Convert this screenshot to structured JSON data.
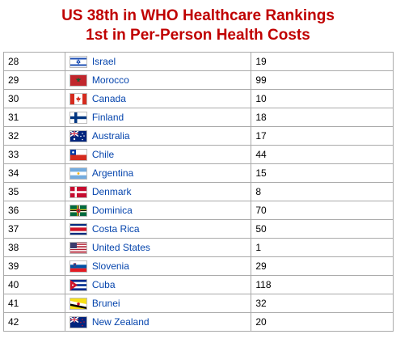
{
  "header": {
    "line1": "US 38th in WHO Healthcare Rankings",
    "line2": "1st in Per-Person Health Costs"
  },
  "colors": {
    "title": "#c00000",
    "link": "#0645ad",
    "border": "#aaaaaa"
  },
  "table": {
    "rows": [
      {
        "rank": "28",
        "country": "Israel",
        "cost": "19",
        "flag": "israel-flag-icon"
      },
      {
        "rank": "29",
        "country": "Morocco",
        "cost": "99",
        "flag": "morocco-flag-icon"
      },
      {
        "rank": "30",
        "country": "Canada",
        "cost": "10",
        "flag": "canada-flag-icon"
      },
      {
        "rank": "31",
        "country": "Finland",
        "cost": "18",
        "flag": "finland-flag-icon"
      },
      {
        "rank": "32",
        "country": "Australia",
        "cost": "17",
        "flag": "australia-flag-icon"
      },
      {
        "rank": "33",
        "country": "Chile",
        "cost": "44",
        "flag": "chile-flag-icon"
      },
      {
        "rank": "34",
        "country": "Argentina",
        "cost": "15",
        "flag": "argentina-flag-icon"
      },
      {
        "rank": "35",
        "country": "Denmark",
        "cost": "8",
        "flag": "denmark-flag-icon"
      },
      {
        "rank": "36",
        "country": "Dominica",
        "cost": "70",
        "flag": "dominica-flag-icon"
      },
      {
        "rank": "37",
        "country": "Costa Rica",
        "cost": "50",
        "flag": "costa-rica-flag-icon"
      },
      {
        "rank": "38",
        "country": "United States",
        "cost": "1",
        "flag": "united-states-flag-icon"
      },
      {
        "rank": "39",
        "country": "Slovenia",
        "cost": "29",
        "flag": "slovenia-flag-icon"
      },
      {
        "rank": "40",
        "country": "Cuba",
        "cost": "118",
        "flag": "cuba-flag-icon"
      },
      {
        "rank": "41",
        "country": "Brunei",
        "cost": "32",
        "flag": "brunei-flag-icon"
      },
      {
        "rank": "42",
        "country": "New Zealand",
        "cost": "20",
        "flag": "new-zealand-flag-icon"
      }
    ]
  }
}
